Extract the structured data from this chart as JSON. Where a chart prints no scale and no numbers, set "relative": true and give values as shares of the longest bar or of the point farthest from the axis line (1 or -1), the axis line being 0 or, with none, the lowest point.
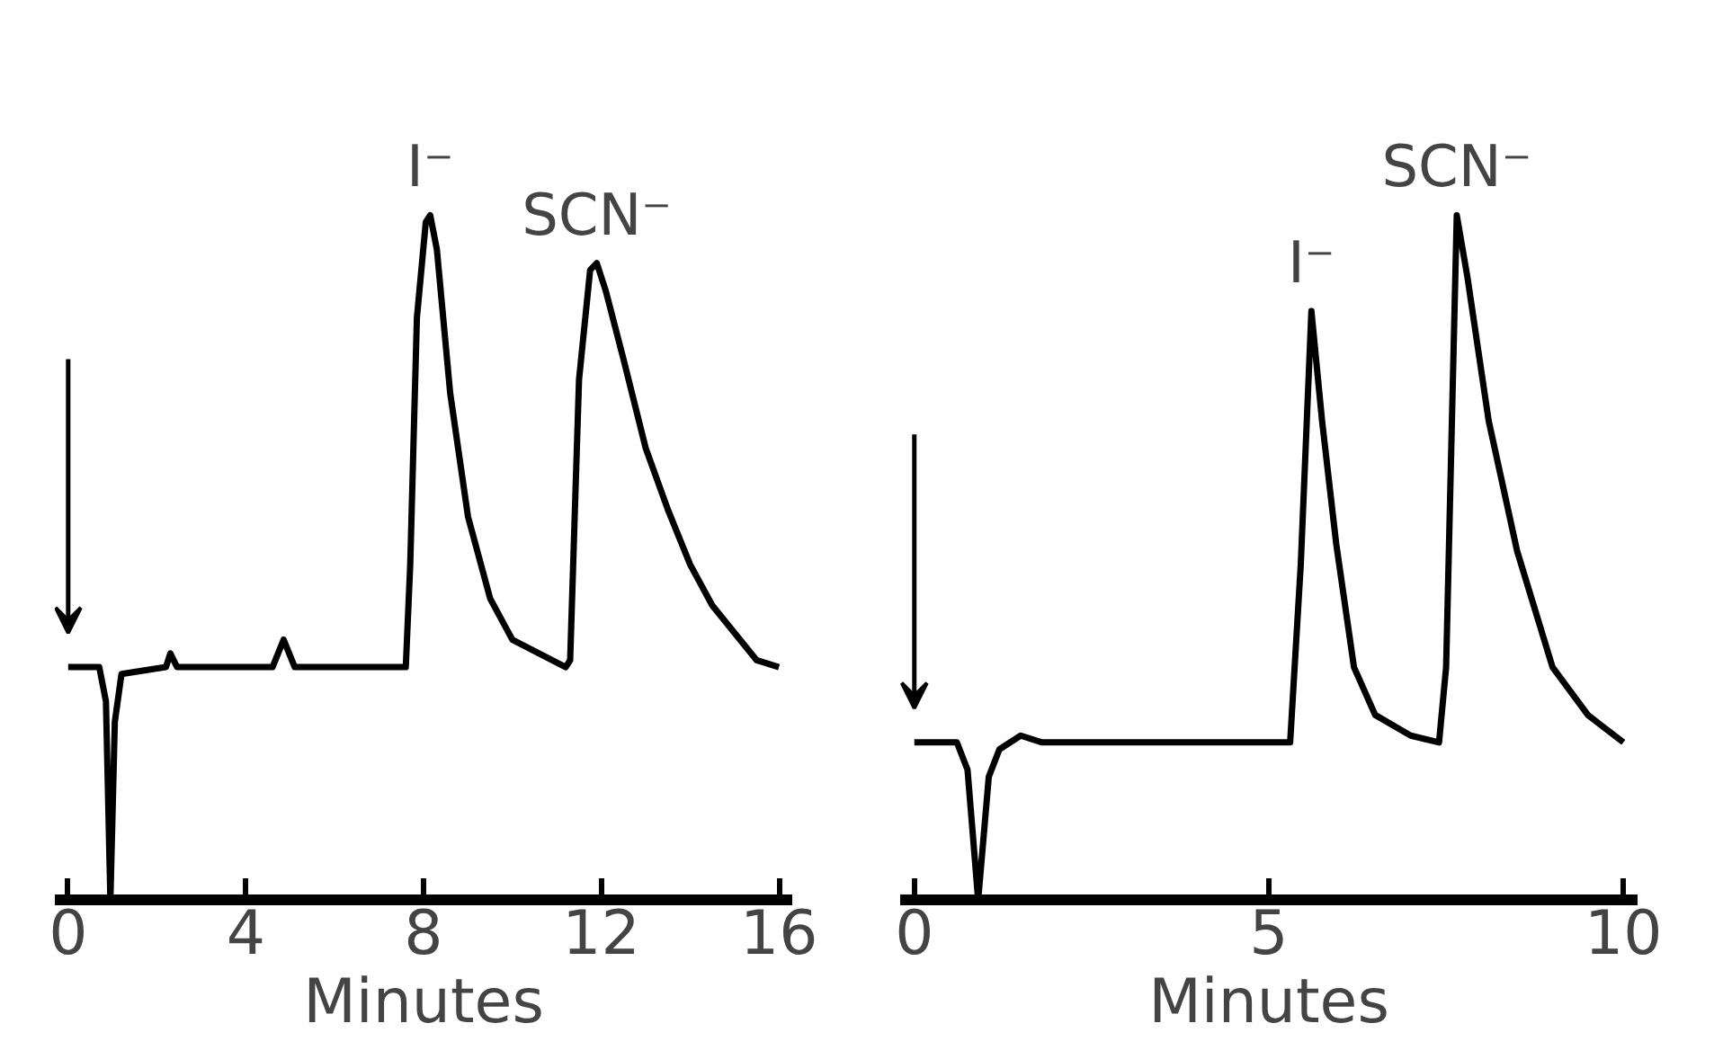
{
  "chart_data": [
    {
      "type": "line",
      "relative": true,
      "xlabel": "Minutes",
      "xlim": [
        -0.3,
        16.3
      ],
      "xticks": [
        0,
        4,
        8,
        12,
        16
      ],
      "grid": false,
      "x": [
        0,
        0.7,
        0.85,
        0.95,
        1.05,
        1.2,
        2.2,
        2.3,
        2.45,
        4.6,
        4.85,
        5.1,
        7.6,
        7.7,
        7.85,
        8.05,
        8.15,
        8.3,
        8.6,
        9,
        9.5,
        10,
        11.2,
        11.3,
        11.5,
        11.75,
        11.9,
        12.1,
        12.5,
        13,
        13.5,
        14,
        14.5,
        15,
        15.5,
        16
      ],
      "series": [
        {
          "color": "#000000",
          "values": [
            0.34,
            0.34,
            0.29,
            0,
            0.26,
            0.33,
            0.34,
            0.36,
            0.34,
            0.34,
            0.38,
            0.34,
            0.34,
            0.49,
            0.85,
            0.99,
            1,
            0.95,
            0.74,
            0.56,
            0.44,
            0.38,
            0.34,
            0.35,
            0.76,
            0.92,
            0.93,
            0.89,
            0.79,
            0.66,
            0.57,
            0.49,
            0.43,
            0.39,
            0.35,
            0.34
          ]
        }
      ],
      "annotations": [
        {
          "text": "I⁻",
          "x": 8.15,
          "y": 1
        },
        {
          "text": "SCN⁻",
          "x": 11.9,
          "y": 0.93
        }
      ]
    },
    {
      "type": "line",
      "relative": true,
      "xlabel": "Minutes",
      "xlim": [
        -0.2,
        10.2
      ],
      "xticks": [
        0,
        5,
        10
      ],
      "grid": false,
      "x": [
        0,
        0.6,
        0.75,
        0.9,
        1.05,
        1.2,
        1.5,
        1.8,
        5.3,
        5.45,
        5.6,
        5.75,
        5.95,
        6.2,
        6.5,
        7,
        7.4,
        7.5,
        7.65,
        7.8,
        8.1,
        8.5,
        9,
        9.5,
        10
      ],
      "series": [
        {
          "color": "#000000",
          "values": [
            0.23,
            0.23,
            0.19,
            0,
            0.18,
            0.22,
            0.24,
            0.23,
            0.23,
            0.49,
            0.86,
            0.7,
            0.52,
            0.34,
            0.27,
            0.24,
            0.23,
            0.34,
            1,
            0.91,
            0.7,
            0.51,
            0.34,
            0.27,
            0.23
          ]
        }
      ],
      "annotations": [
        {
          "text": "I⁻",
          "x": 5.6,
          "y": 0.86
        },
        {
          "text": "SCN⁻",
          "x": 7.65,
          "y": 1
        }
      ]
    }
  ]
}
